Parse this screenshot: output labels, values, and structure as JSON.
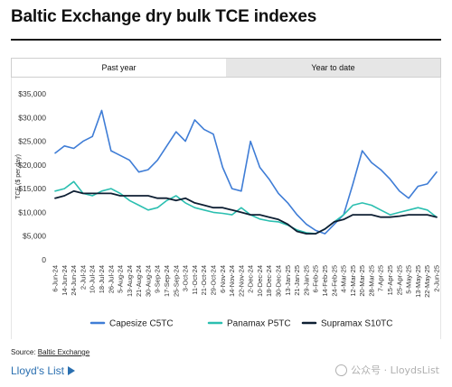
{
  "header": {
    "title": "Baltic Exchange dry bulk TCE indexes"
  },
  "tabs": [
    {
      "label": "Past year",
      "active": true
    },
    {
      "label": "Year to date",
      "active": false
    }
  ],
  "source": {
    "prefix": "Source: ",
    "link": "Baltic Exchange"
  },
  "brand": {
    "name": "Lloyd's List",
    "color": "#2a6fb0"
  },
  "watermark": {
    "text": "公众号 · LloydsList"
  },
  "chart_data": {
    "type": "line",
    "ylabel": "TCE ($ per day)",
    "ylim": [
      0,
      35000
    ],
    "yticks": [
      "0",
      "$5,000",
      "$10,000",
      "$15,000",
      "$20,000",
      "$25,000",
      "$30,000",
      "$35,000"
    ],
    "grid": false,
    "legend_position": "bottom",
    "x_tick_labels": [
      "6-Jun-24",
      "14-Jun-24",
      "24-Jun-24",
      "2-Jul-24",
      "10-Jul-24",
      "18-Jul-24",
      "26-Jul-24",
      "5-Aug-24",
      "13-Aug-24",
      "21-Aug-24",
      "30-Aug-24",
      "9-Sep-24",
      "17-Sep-24",
      "25-Sep-24",
      "3-Oct-24",
      "11-Oct-24",
      "21-Oct-24",
      "29-Oct-24",
      "6-Nov-24",
      "14-Nov-24",
      "22-Nov-24",
      "2-Dec-24",
      "10-Dec-24",
      "18-Dec-24",
      "30-Dec-24",
      "13-Jan-25",
      "21-Jan-25",
      "29-Jan-25",
      "6-Feb-25",
      "14-Feb-25",
      "24-Feb-25",
      "4-Mar-25",
      "12-Mar-25",
      "20-Mar-25",
      "28-Mar-25",
      "7-Apr-25",
      "15-Apr-25",
      "25-Apr-25",
      "5-May-25",
      "13-May-25",
      "22-May-25",
      "2-Jun-25"
    ],
    "series": [
      {
        "name": "Capesize C5TC",
        "color": "#3f7dd6",
        "values": [
          22500,
          24000,
          23500,
          25000,
          26000,
          31500,
          23000,
          22000,
          21000,
          18500,
          19000,
          21000,
          24000,
          27000,
          25000,
          29500,
          27500,
          26500,
          19500,
          15000,
          14500,
          25000,
          19500,
          17000,
          14000,
          12000,
          9500,
          7500,
          6200,
          5500,
          7500,
          9500,
          16000,
          23000,
          20500,
          19000,
          17000,
          14500,
          13000,
          15500,
          16000,
          18500
        ]
      },
      {
        "name": "Panamax P5TC",
        "color": "#2bbfb0",
        "values": [
          14500,
          15000,
          16500,
          14000,
          13500,
          14500,
          15000,
          14000,
          12500,
          11500,
          10500,
          11000,
          12500,
          13500,
          12000,
          11000,
          10500,
          10000,
          9800,
          9500,
          11000,
          9500,
          8600,
          8200,
          8000,
          7300,
          6300,
          5700,
          5500,
          6500,
          8000,
          9500,
          11500,
          12000,
          11500,
          10500,
          9500,
          10000,
          10500,
          11000,
          10500,
          9000
        ]
      },
      {
        "name": "Supramax S10TC",
        "color": "#0e1f33",
        "values": [
          13000,
          13500,
          14500,
          14000,
          14000,
          14000,
          14000,
          13500,
          13500,
          13500,
          13500,
          13000,
          13000,
          12500,
          13000,
          12000,
          11500,
          11000,
          11000,
          10500,
          10000,
          9500,
          9500,
          9000,
          8500,
          7500,
          6000,
          5500,
          5500,
          6500,
          8000,
          8500,
          9500,
          9500,
          9500,
          9000,
          9000,
          9200,
          9500,
          9500,
          9500,
          9000
        ]
      }
    ]
  }
}
